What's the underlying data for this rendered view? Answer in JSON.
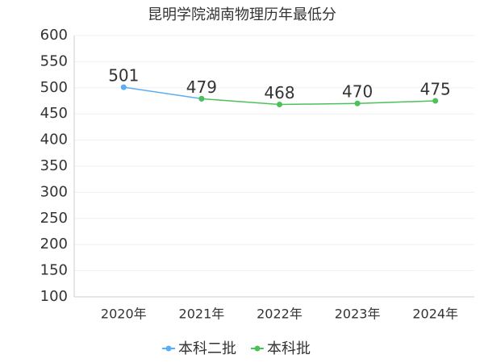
{
  "chart_data": {
    "type": "line",
    "title": "昆明学院湖南物理历年最低分",
    "categories": [
      "2020年",
      "2021年",
      "2022年",
      "2023年",
      "2024年"
    ],
    "series": [
      {
        "name": "本科二批",
        "color": "#5aaef5",
        "values": [
          501,
          479,
          null,
          null,
          null
        ]
      },
      {
        "name": "本科批",
        "color": "#4cc15a",
        "values": [
          null,
          479,
          468,
          470,
          475
        ]
      }
    ],
    "ylim": [
      100,
      600
    ],
    "yticks": [
      100,
      150,
      200,
      250,
      300,
      350,
      400,
      450,
      500,
      550,
      600
    ],
    "grid": true
  }
}
